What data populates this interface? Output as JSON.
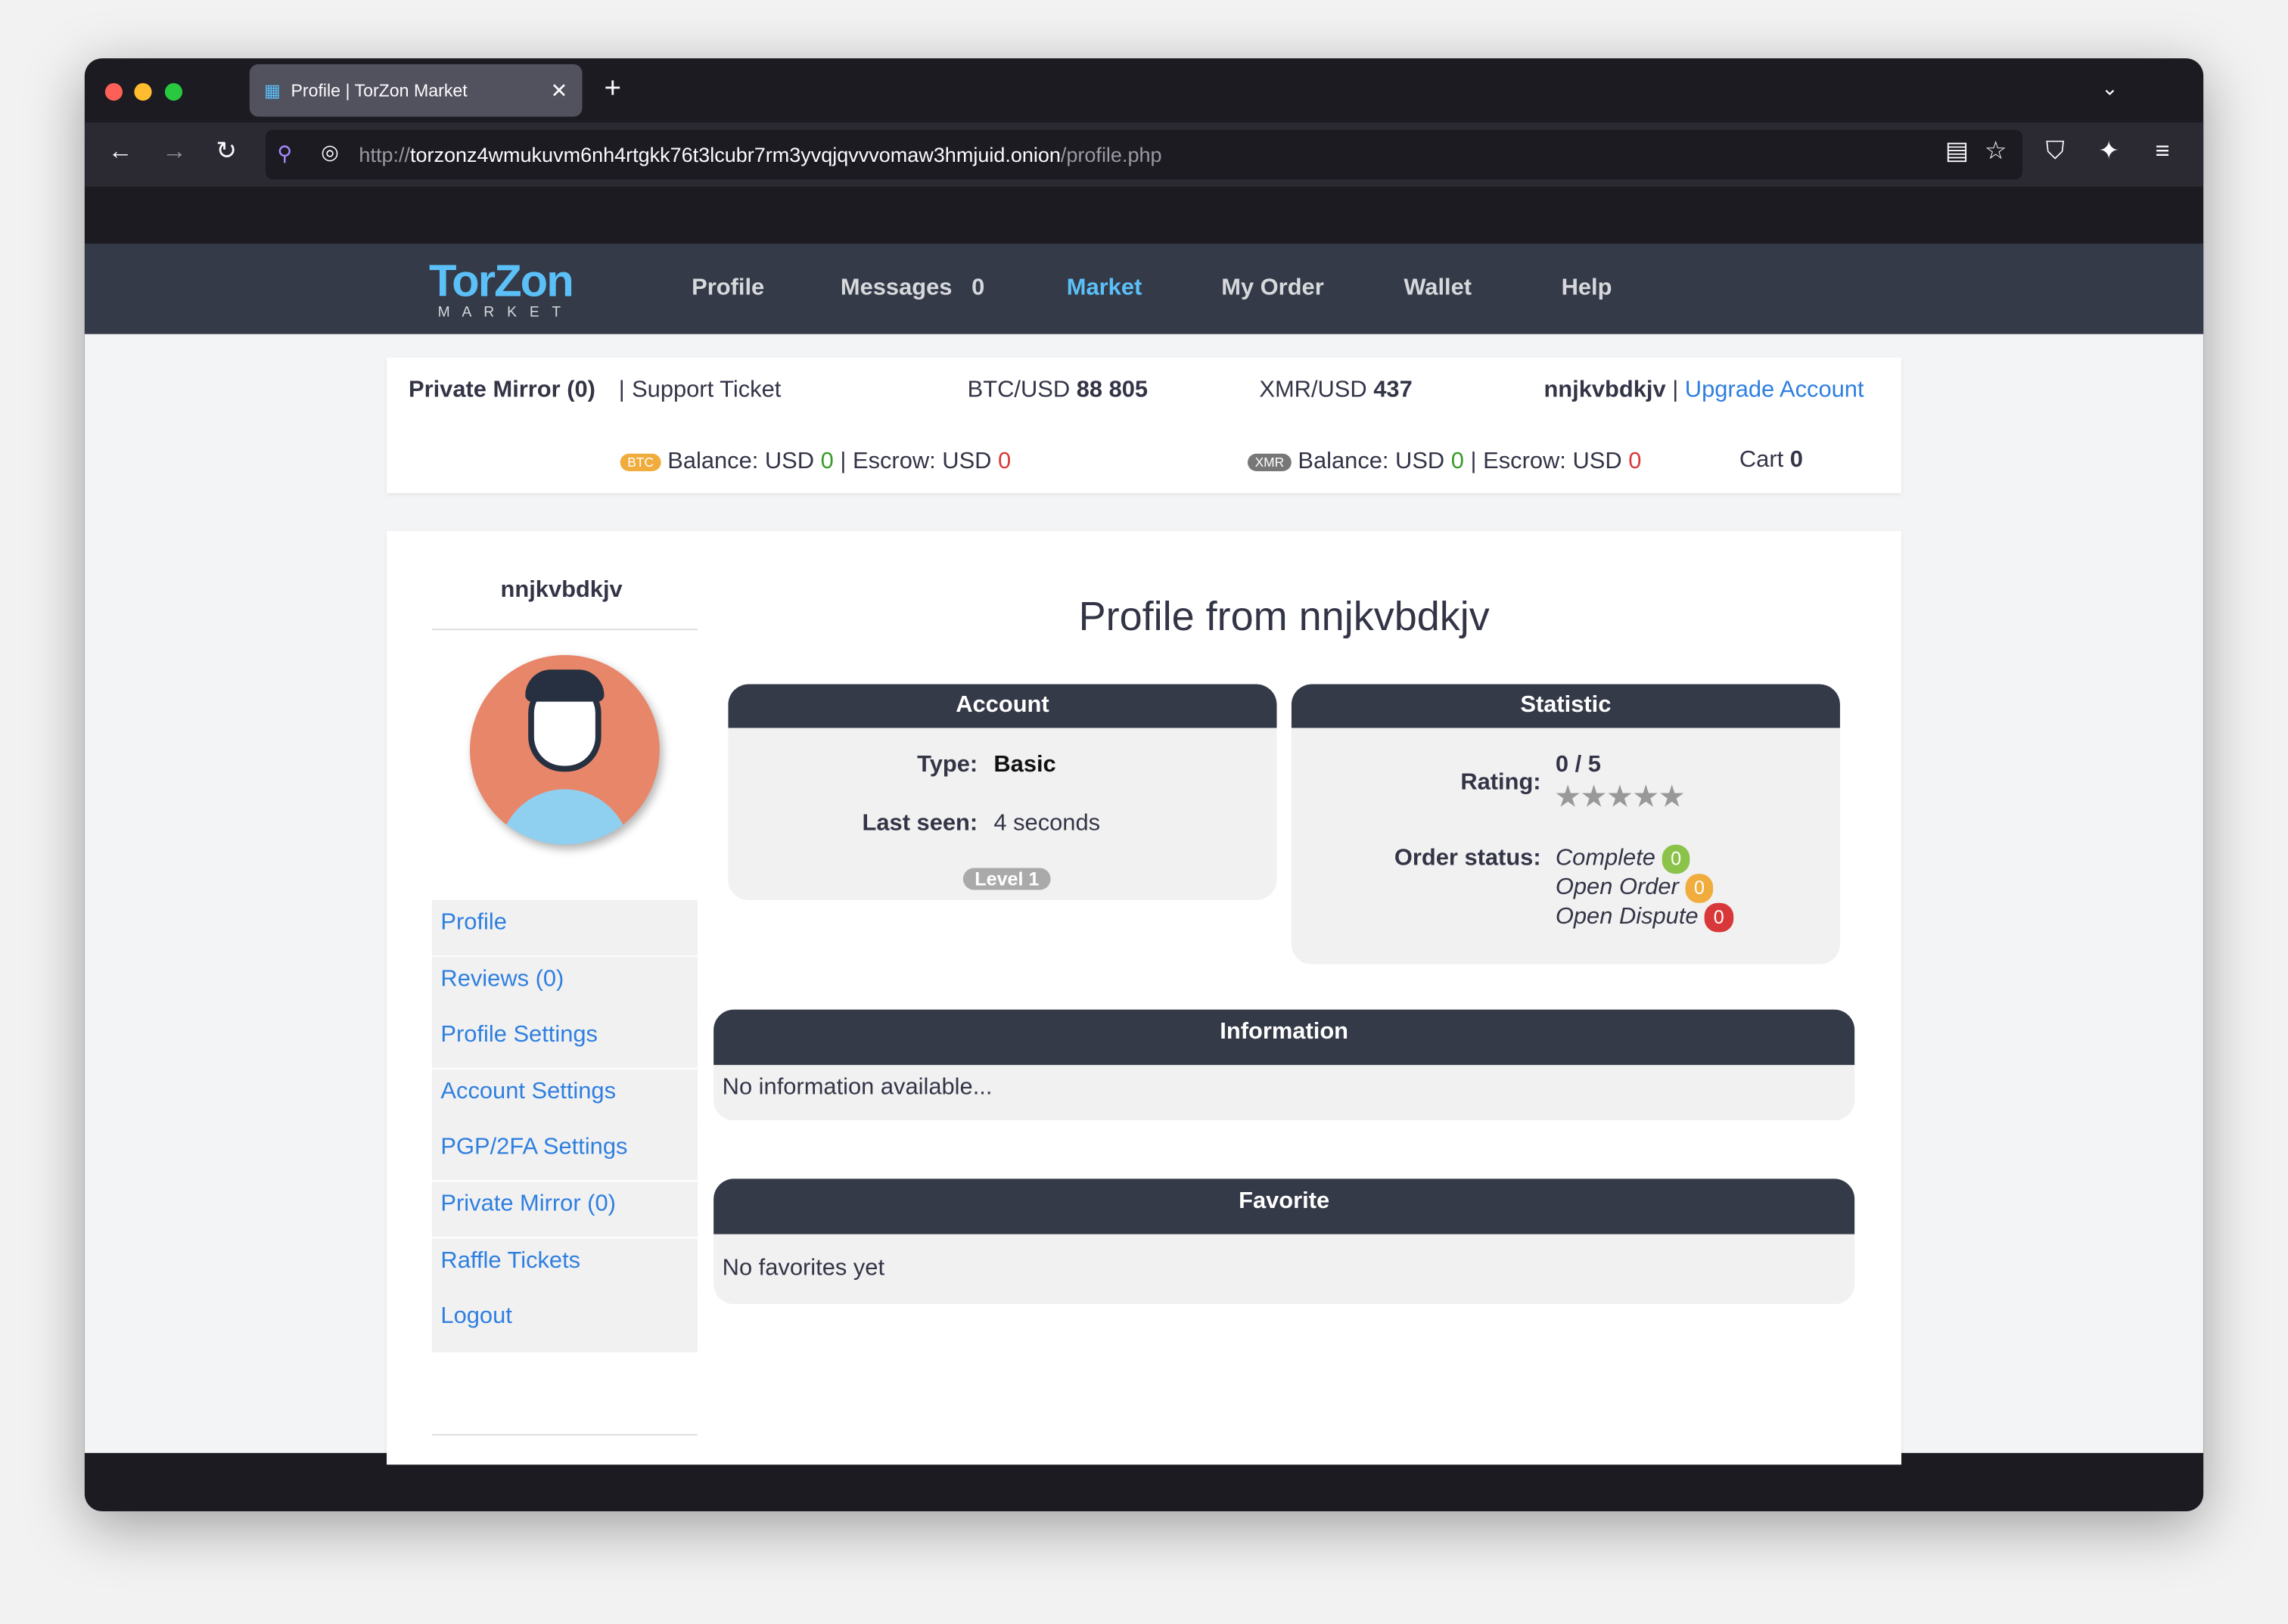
{
  "browser": {
    "tab_title": "Profile | TorZon Market",
    "url_scheme": "http://",
    "url_host": "torzonz4wmukuvm6nh4rtgkk76t3lcubr7rm3yvqjqvvvomaw3hmjuid.onion",
    "url_path": "/profile.php",
    "icons": [
      "back-icon",
      "forward-icon",
      "reload-icon",
      "reader-icon",
      "bookmark-star-icon",
      "shield-icon",
      "extensions-icon",
      "menu-icon"
    ]
  },
  "logo": {
    "text": "TorZon",
    "sub": "M A R K E T"
  },
  "nav": {
    "items": [
      {
        "label": "Profile"
      },
      {
        "label": "Messages",
        "count": "0"
      },
      {
        "label": "Market",
        "active": true
      },
      {
        "label": "My Order"
      },
      {
        "label": "Wallet"
      },
      {
        "label": "Help"
      }
    ]
  },
  "topbar": {
    "private_mirror": "Private Mirror (0)",
    "sep": "|",
    "support": "Support Ticket",
    "btc_label": "BTC/USD",
    "btc_value": "88 805",
    "xmr_label": "XMR/USD",
    "xmr_value": "437",
    "username": "nnjkvbdkjv",
    "upgrade": "Upgrade Account",
    "btc_badge": "BTC",
    "xmr_badge": "XMR",
    "balance_label": "Balance: USD",
    "btc_balance": "0",
    "escrow_label": "Escrow: USD",
    "btc_escrow": "0",
    "xmr_balance": "0",
    "xmr_escrow": "0",
    "cart_label": "Cart",
    "cart_value": "0"
  },
  "sidebar": {
    "username": "nnjkvbdkjv",
    "items": [
      {
        "label": "Profile"
      },
      {
        "label": "Reviews (0)"
      },
      {
        "label": "Profile Settings"
      },
      {
        "label": "Account Settings"
      },
      {
        "label": "PGP/2FA Settings"
      },
      {
        "label": "Private Mirror (0)"
      },
      {
        "label": "Raffle Tickets"
      },
      {
        "label": "Logout"
      }
    ]
  },
  "main": {
    "title": "Profile from nnjkvbdkjv",
    "account": {
      "header": "Account",
      "type_label": "Type:",
      "type_value": "Basic",
      "seen_label": "Last seen:",
      "seen_value": "4 seconds",
      "level": "Level 1"
    },
    "statistic": {
      "header": "Statistic",
      "rating_label": "Rating:",
      "rating_value": "0 / 5",
      "stars_filled": 0,
      "stars_total": 5,
      "order_label": "Order status:",
      "complete": "Complete",
      "complete_count": "0",
      "open_order": "Open Order",
      "open_order_count": "0",
      "open_dispute": "Open Dispute",
      "open_dispute_count": "0"
    },
    "information": {
      "header": "Information",
      "text": "No information available..."
    },
    "favorite": {
      "header": "Favorite",
      "text": "No favorites yet"
    }
  },
  "colors": {
    "nav_bg": "#343a48",
    "accent": "#2f7fe0",
    "active_nav": "#5bc0f8",
    "green": "#8bc34a",
    "orange": "#f0ad3e",
    "red": "#d9383a"
  }
}
